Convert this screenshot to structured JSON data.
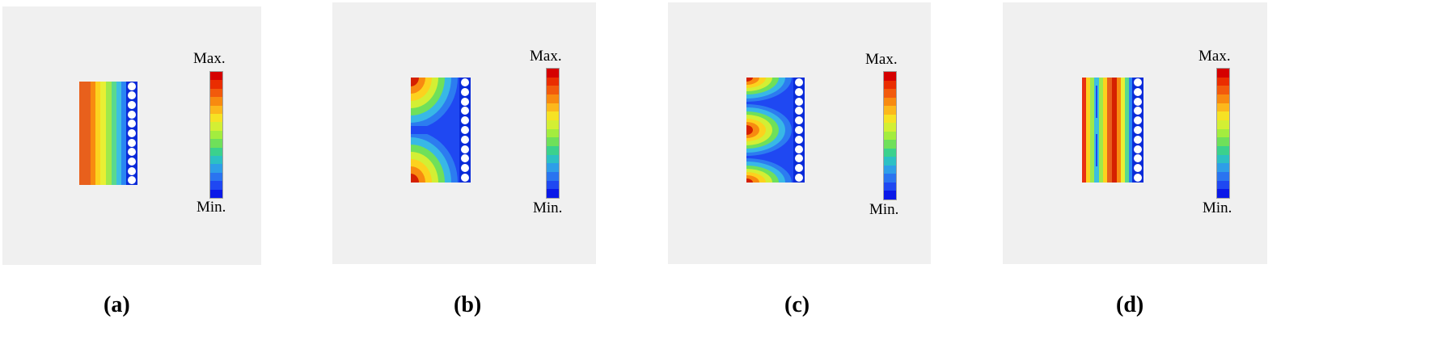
{
  "legend": {
    "max_label": "Max.",
    "min_label": "Min."
  },
  "panels": [
    {
      "caption": "(a)"
    },
    {
      "caption": "(b)"
    },
    {
      "caption": "(c)"
    },
    {
      "caption": "(d)"
    }
  ],
  "colormap": [
    "#d50000",
    "#ea2d00",
    "#f25a0c",
    "#f88a10",
    "#fcb81c",
    "#f6e224",
    "#d3ef34",
    "#a3ed3e",
    "#6fe05a",
    "#3bd18d",
    "#2cc0c4",
    "#2e9ee8",
    "#2a74f0",
    "#1f48f2",
    "#0a18e8"
  ]
}
